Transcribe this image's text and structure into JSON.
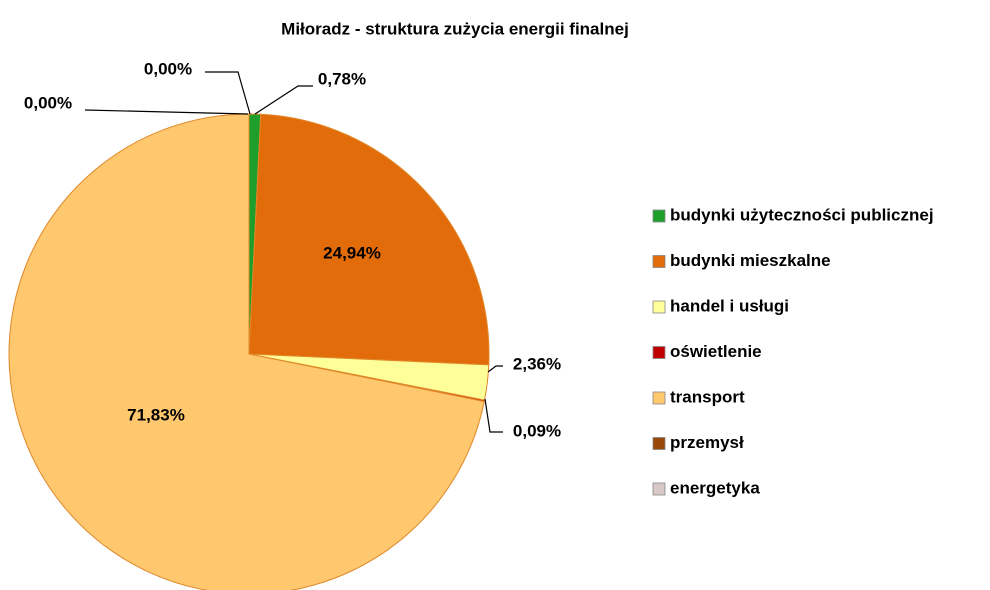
{
  "chart_data": {
    "type": "pie",
    "title": "Miłoradz - struktura zużycia energii finalnej",
    "categories": [
      "budynki użyteczności publicznej",
      "budynki mieszkalne",
      "handel i usługi",
      "oświetlenie",
      "transport",
      "przemysł",
      "energetyka"
    ],
    "values": [
      0.78,
      24.94,
      2.36,
      0.09,
      71.83,
      0.0,
      0.0
    ],
    "value_labels": [
      "0,78%",
      "24,94%",
      "2,36%",
      "0,09%",
      "71,83%",
      "0,00%",
      "0,00%"
    ],
    "colors": [
      "#1e9e2a",
      "#e36c0a",
      "#ffff99",
      "#c00000",
      "#ffc86e",
      "#984807",
      "#d8c8c8"
    ],
    "legend": "right"
  }
}
